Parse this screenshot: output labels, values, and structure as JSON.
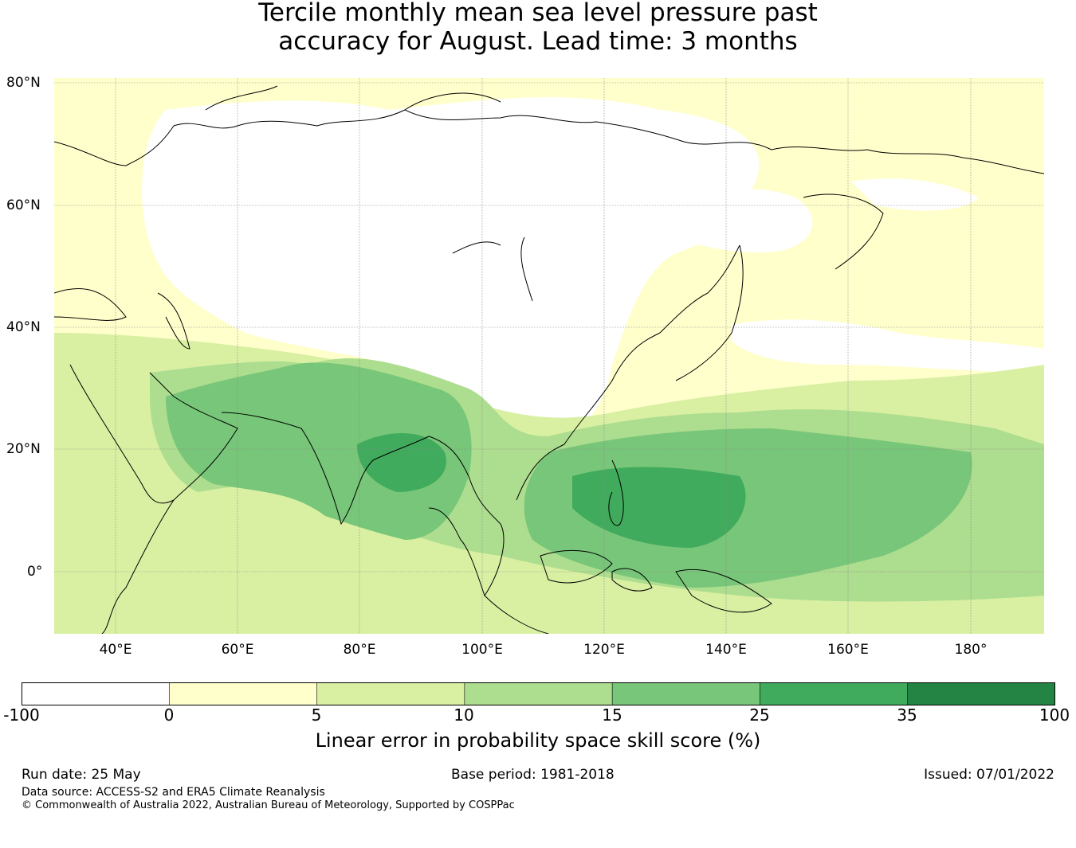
{
  "title": {
    "line1": "Tercile monthly mean sea level pressure past",
    "line2": "accuracy for August. Lead time: 3 months"
  },
  "map": {
    "lat_labels": [
      "80°N",
      "60°N",
      "40°N",
      "20°N",
      "0°"
    ],
    "lon_labels": [
      "40°E",
      "60°E",
      "80°E",
      "100°E",
      "120°E",
      "140°E",
      "160°E",
      "180°"
    ]
  },
  "colorbar": {
    "ticks": [
      "-100",
      "0",
      "5",
      "10",
      "15",
      "25",
      "35",
      "100"
    ],
    "colors": [
      "#ffffff",
      "#ffffcc",
      "#d9f0a3",
      "#addd8e",
      "#78c679",
      "#41ab5d",
      "#238443"
    ],
    "label": "Linear error in probability space skill score (%)"
  },
  "footer": {
    "run_date": "Run date: 25 May",
    "base_period": "Base period: 1981-2018",
    "issued": "Issued: 07/01/2022",
    "data_source": "Data source: ACCESS-S2 and ERA5 Climate Reanalysis",
    "copyright": "© Commonwealth of Australia 2022, Australian Bureau of Meteorology, Supported by COSPPac"
  }
}
